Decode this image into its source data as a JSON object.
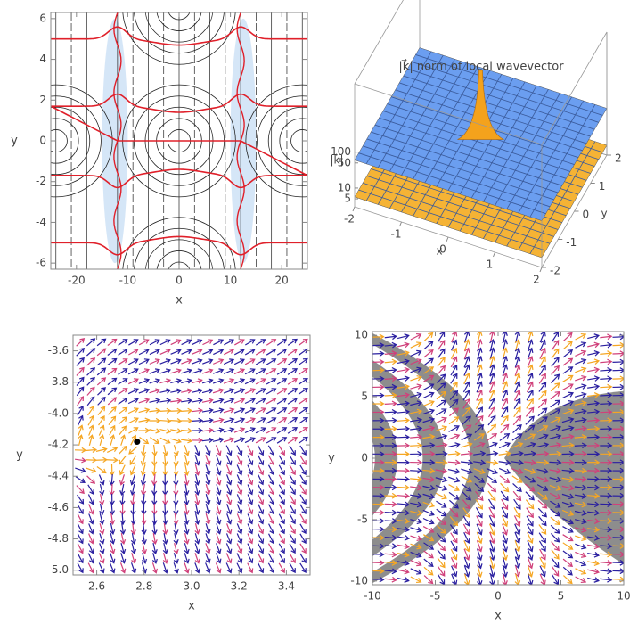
{
  "chart_data": [
    {
      "type": "contour",
      "xlabel": "x",
      "ylabel": "y",
      "xlim": [
        -25,
        25
      ],
      "ylim": [
        -6.3,
        6.3
      ],
      "xticks": [
        -20,
        -10,
        0,
        10,
        20
      ],
      "yticks": [
        -6,
        -4,
        -2,
        0,
        2,
        4,
        6
      ]
    },
    {
      "type": "surface3d",
      "title": "|k⃗| norm of local wavevector",
      "xlabel": "x",
      "ylabel": "y",
      "zlabel": "|k⃗|",
      "xlim": [
        -2,
        2
      ],
      "ylim": [
        -2,
        2
      ],
      "zlim": [
        3,
        8000
      ],
      "log_z": true,
      "xticks": [
        -2,
        -1,
        0,
        1,
        2
      ],
      "yticks": [
        -2,
        -1,
        0,
        1,
        2
      ],
      "zticks": [
        5,
        10,
        50,
        100
      ]
    },
    {
      "type": "vector",
      "xlabel": "x",
      "ylabel": "y",
      "xlim": [
        2.5,
        3.5
      ],
      "ylim": [
        -5.03,
        -3.5
      ],
      "xticks": [
        2.6,
        2.8,
        {
          "value": 3,
          "label": "3.0"
        },
        3.2,
        3.4
      ],
      "yticks": [
        {
          "value": -5,
          "label": "-5.0"
        },
        -4.8,
        -4.6,
        -4.4,
        -4.2,
        {
          "value": -4,
          "label": "-4.0"
        },
        -3.8,
        -3.6
      ],
      "points": {
        "x": [
          2.77
        ],
        "y": [
          -4.18
        ]
      }
    },
    {
      "type": "stream",
      "xlabel": "x",
      "ylabel": "y",
      "xlim": [
        -10,
        10
      ],
      "ylim": [
        -10.3,
        10.3
      ],
      "xticks": [
        -10,
        -5,
        0,
        5,
        10
      ],
      "yticks": [
        -10,
        -5,
        0,
        5,
        10
      ]
    }
  ]
}
